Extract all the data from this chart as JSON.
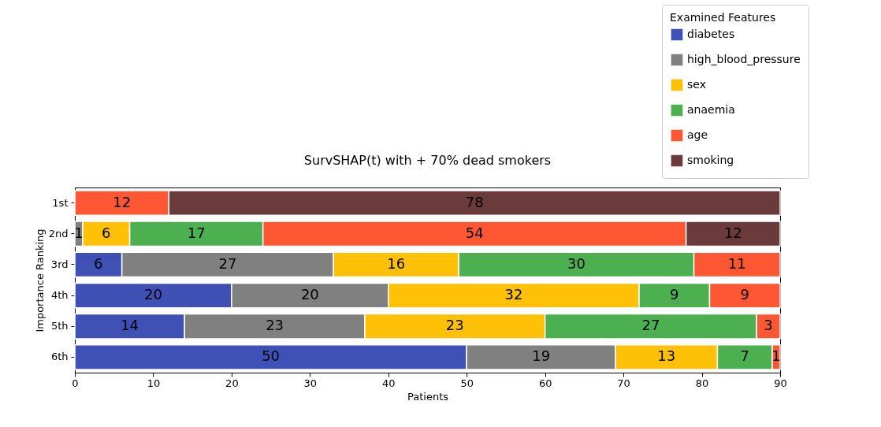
{
  "chart_data": {
    "type": "bar",
    "orientation": "horizontal",
    "stacked": true,
    "title": "SurvSHAP(t) with + 70% dead smokers",
    "xlabel": "Patients",
    "ylabel": "Importance Ranking",
    "legend_title": "Examined Features",
    "legend": "top right",
    "data_labels": true,
    "categories": [
      "1st",
      "2nd",
      "3rd",
      "4th",
      "5th",
      "6th"
    ],
    "series": [
      {
        "name": "diabetes",
        "color": "#3f51b5",
        "values": [
          null,
          null,
          6,
          20,
          14,
          50
        ]
      },
      {
        "name": "high_blood_pressure",
        "color": "#808080",
        "values": [
          null,
          1,
          27,
          20,
          23,
          19
        ]
      },
      {
        "name": "sex",
        "color": "#ffc107",
        "values": [
          null,
          6,
          16,
          32,
          23,
          13
        ]
      },
      {
        "name": "anaemia",
        "color": "#4caf50",
        "values": [
          null,
          17,
          30,
          9,
          27,
          7
        ]
      },
      {
        "name": "age",
        "color": "#ff5733",
        "values": [
          12,
          54,
          11,
          9,
          3,
          1
        ]
      },
      {
        "name": "smoking",
        "color": "#6b3a3a",
        "values": [
          78,
          12,
          null,
          null,
          null,
          null
        ]
      }
    ],
    "xlim": [
      0,
      90
    ],
    "xticks": [
      0,
      10,
      20,
      30,
      40,
      50,
      60,
      70,
      80,
      90
    ]
  }
}
